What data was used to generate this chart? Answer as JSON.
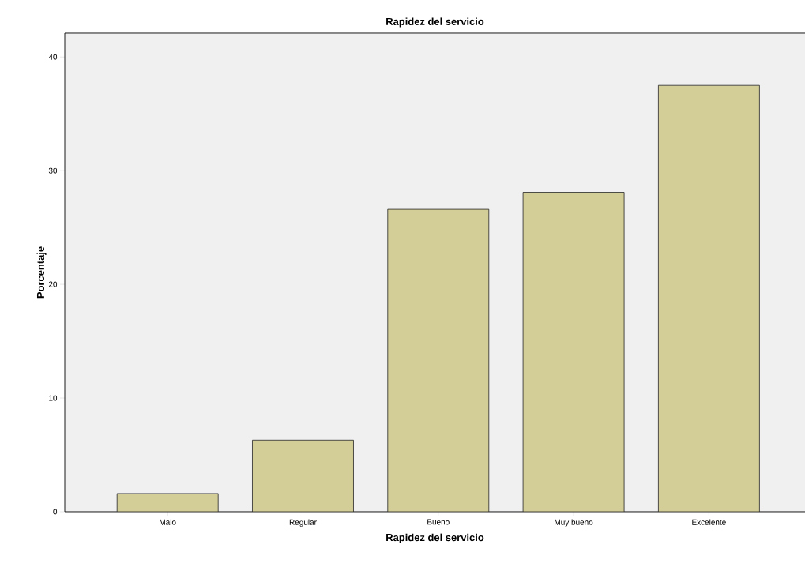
{
  "chart_data": {
    "type": "bar",
    "title": "Rapidez del servicio",
    "xlabel": "Rapidez del servicio",
    "ylabel": "Porcentaje",
    "categories": [
      "Malo",
      "Regular",
      "Bueno",
      "Muy bueno",
      "Excelente"
    ],
    "values": [
      1.6,
      6.3,
      26.6,
      28.1,
      37.5
    ],
    "color": "#d3cd97",
    "ylim": [
      0,
      42.1
    ],
    "yticks": [
      0,
      10,
      20,
      30,
      40
    ],
    "grid": false
  }
}
